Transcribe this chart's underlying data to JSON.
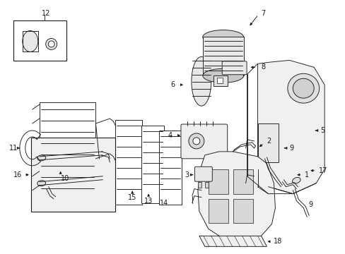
{
  "bg_color": "#ffffff",
  "line_color": "#1a1a1a",
  "lw": 0.65,
  "fig_width": 4.89,
  "fig_height": 3.6,
  "dpi": 100,
  "font_size": 7.0
}
